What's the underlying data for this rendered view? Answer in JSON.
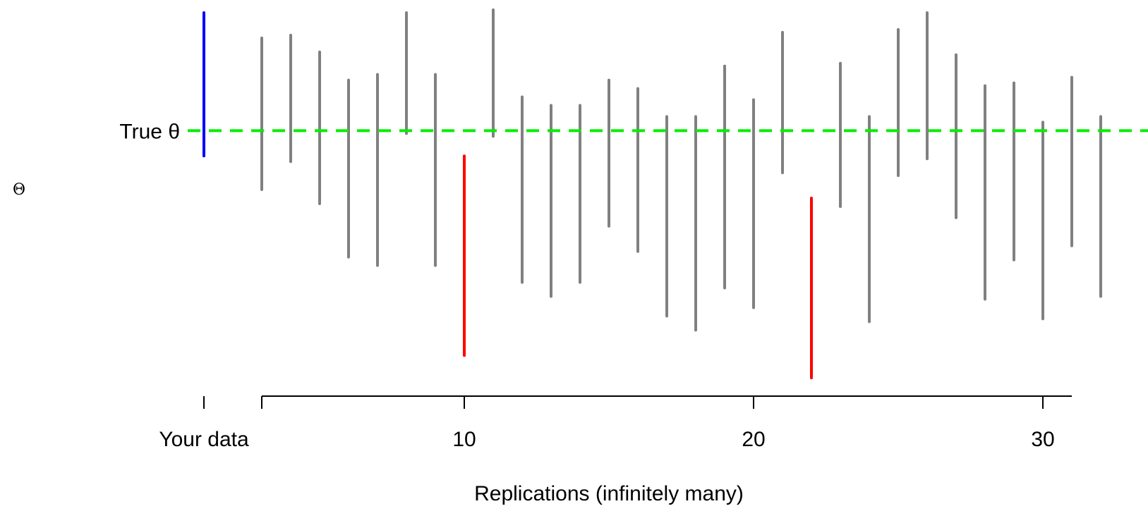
{
  "chart_data": {
    "type": "interval",
    "xlabel": "Replications (infinitely many)",
    "ylabel": "Θ",
    "true_label": "True θ",
    "x_tick_labels": [
      "Your data",
      "10",
      "20",
      "30"
    ],
    "x_tick_values": [
      1,
      10,
      20,
      30
    ],
    "y_range": [
      0,
      13.8
    ],
    "true_value": 9.4,
    "colors": {
      "your_data": "#0000ff",
      "covers": "#808080",
      "misses": "#ff0000",
      "true_line": "#00ee00",
      "axis": "#000000"
    },
    "your_data": {
      "x": 0,
      "lower": 8.5,
      "upper": 13.6
    },
    "replications": [
      {
        "x": 2,
        "lower": 7.3,
        "upper": 12.7,
        "covers": true
      },
      {
        "x": 3,
        "lower": 8.3,
        "upper": 12.8,
        "covers": true
      },
      {
        "x": 4,
        "lower": 6.8,
        "upper": 12.2,
        "covers": true
      },
      {
        "x": 5,
        "lower": 4.9,
        "upper": 11.2,
        "covers": true
      },
      {
        "x": 6,
        "lower": 4.6,
        "upper": 11.4,
        "covers": true
      },
      {
        "x": 7,
        "lower": 9.3,
        "upper": 13.6,
        "covers": true
      },
      {
        "x": 8,
        "lower": 4.6,
        "upper": 11.4,
        "covers": true
      },
      {
        "x": 9,
        "lower": 1.4,
        "upper": 8.5,
        "covers": false
      },
      {
        "x": 10,
        "lower": 9.2,
        "upper": 13.7,
        "covers": true
      },
      {
        "x": 11,
        "lower": 4.0,
        "upper": 10.6,
        "covers": true
      },
      {
        "x": 12,
        "lower": 3.5,
        "upper": 10.3,
        "covers": true
      },
      {
        "x": 13,
        "lower": 4.0,
        "upper": 10.3,
        "covers": true
      },
      {
        "x": 14,
        "lower": 6.0,
        "upper": 11.2,
        "covers": true
      },
      {
        "x": 15,
        "lower": 5.1,
        "upper": 10.9,
        "covers": true
      },
      {
        "x": 16,
        "lower": 2.8,
        "upper": 9.9,
        "covers": true
      },
      {
        "x": 17,
        "lower": 2.3,
        "upper": 9.9,
        "covers": true
      },
      {
        "x": 18,
        "lower": 3.8,
        "upper": 11.7,
        "covers": true
      },
      {
        "x": 19,
        "lower": 3.1,
        "upper": 10.5,
        "covers": true
      },
      {
        "x": 20,
        "lower": 7.9,
        "upper": 12.9,
        "covers": true
      },
      {
        "x": 21,
        "lower": 0.6,
        "upper": 7.0,
        "covers": false
      },
      {
        "x": 22,
        "lower": 6.7,
        "upper": 11.8,
        "covers": true
      },
      {
        "x": 23,
        "lower": 2.6,
        "upper": 9.9,
        "covers": true
      },
      {
        "x": 24,
        "lower": 7.8,
        "upper": 13.0,
        "covers": true
      },
      {
        "x": 25,
        "lower": 8.4,
        "upper": 13.6,
        "covers": true
      },
      {
        "x": 26,
        "lower": 6.3,
        "upper": 12.1,
        "covers": true
      },
      {
        "x": 27,
        "lower": 3.4,
        "upper": 11.0,
        "covers": true
      },
      {
        "x": 28,
        "lower": 4.8,
        "upper": 11.1,
        "covers": true
      },
      {
        "x": 29,
        "lower": 2.7,
        "upper": 9.7,
        "covers": true
      },
      {
        "x": 30,
        "lower": 5.3,
        "upper": 11.3,
        "covers": true
      },
      {
        "x": 31,
        "lower": 3.5,
        "upper": 9.9,
        "covers": true
      }
    ]
  }
}
